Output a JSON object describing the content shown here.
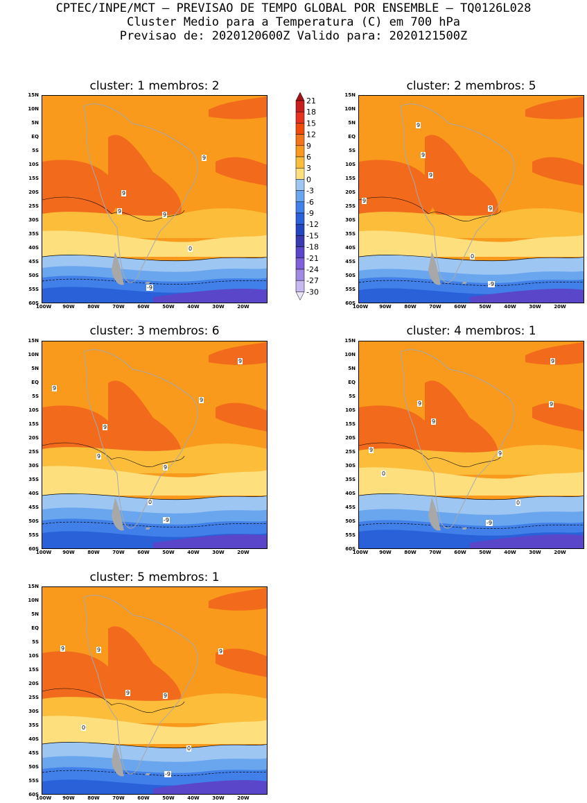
{
  "header": {
    "line1": "CPTEC/INPE/MCT – PREVISAO DE TEMPO GLOBAL POR ENSEMBLE – TQ0126L028",
    "line2": "Cluster Medio para a Temperatura (C) em 700 hPa",
    "line3": "Previsao de: 2020120600Z    Valido para: 2020121500Z"
  },
  "axes": {
    "lat_labels": [
      "15N",
      "10N",
      "5N",
      "EQ",
      "5S",
      "10S",
      "15S",
      "20S",
      "25S",
      "30S",
      "35S",
      "40S",
      "45S",
      "50S",
      "55S",
      "60S"
    ],
    "lon_labels": [
      "100W",
      "90W",
      "80W",
      "70W",
      "60W",
      "50W",
      "40W",
      "30W",
      "20W"
    ]
  },
  "panels": [
    {
      "title": "cluster: 1   membros: 2",
      "labels": [
        "9",
        "9",
        "9",
        "9",
        "9",
        "0",
        "-9"
      ]
    },
    {
      "title": "cluster: 2   membros: 5",
      "labels": [
        "9",
        "9",
        "9",
        "9",
        "9",
        "9",
        "0",
        "-9"
      ]
    },
    {
      "title": "cluster: 3   membros: 6",
      "labels": [
        "9",
        "9",
        "9",
        "9",
        "9",
        "9",
        "0",
        "-9"
      ]
    },
    {
      "title": "cluster: 4   membros: 1",
      "labels": [
        "9",
        "9",
        "9",
        "9",
        "9",
        "9",
        "0",
        "0",
        "-9"
      ]
    },
    {
      "title": "cluster: 5   membros: 1",
      "labels": [
        "9",
        "9",
        "9",
        "9",
        "9",
        "0",
        "0",
        "-9"
      ]
    }
  ],
  "legend": {
    "values": [
      "21",
      "18",
      "15",
      "12",
      "9",
      "6",
      "3",
      "0",
      "-3",
      "-6",
      "-9",
      "-12",
      "-15",
      "-18",
      "-21",
      "-24",
      "-27",
      "-30"
    ],
    "colors": [
      "#a01418",
      "#c81e1e",
      "#e6321e",
      "#f04b0a",
      "#f4741a",
      "#f99a1c",
      "#fbbd3a",
      "#fddf7e",
      "#9ec6f2",
      "#6aa6ee",
      "#4080e8",
      "#2a60d8",
      "#2446c0",
      "#3a3ab0",
      "#5a46c8",
      "#8060d8",
      "#a08ae2",
      "#c8b8f0",
      "#ebe5f8"
    ]
  },
  "map_colors": {
    "land": "#a8a8a8",
    "warm_core": "#f26a1b",
    "warm": "#f99a1c",
    "mild": "#fbbd3a",
    "cool_yellow": "#fddf7e",
    "light_blue": "#9ec6f2",
    "mid_blue": "#6aa6ee",
    "blue": "#4080e8",
    "deep_blue": "#2a60d8",
    "purple": "#5a46c8"
  }
}
